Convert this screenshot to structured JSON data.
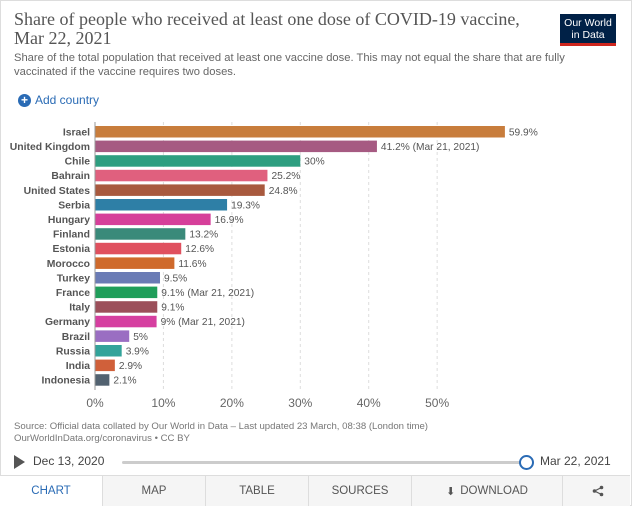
{
  "header": {
    "title": "Share of people who received at least one dose of COVID-19 vaccine, Mar 22, 2021",
    "subtitle": "Share of the total population that received at least one vaccine dose. This may not equal the share that are fully vaccinated if the vaccine requires two doses.",
    "logo_line1": "Our World",
    "logo_line2": "in Data"
  },
  "controls": {
    "add_country_label": "Add country"
  },
  "chart_data": {
    "type": "bar",
    "orientation": "horizontal",
    "title": "Share of people who received at least one dose of COVID-19 vaccine, Mar 22, 2021",
    "categories": [
      "Israel",
      "United Kingdom",
      "Chile",
      "Bahrain",
      "United States",
      "Serbia",
      "Hungary",
      "Finland",
      "Estonia",
      "Morocco",
      "Turkey",
      "France",
      "Italy",
      "Germany",
      "Brazil",
      "Russia",
      "India",
      "Indonesia"
    ],
    "values": [
      59.9,
      41.2,
      30,
      25.2,
      24.8,
      19.3,
      16.9,
      13.2,
      12.6,
      11.6,
      9.5,
      9.1,
      9.1,
      9,
      5,
      3.9,
      2.9,
      2.1
    ],
    "value_labels": [
      "59.9%",
      "41.2% (Mar 21, 2021)",
      "30%",
      "25.2%",
      "24.8%",
      "19.3%",
      "16.9%",
      "13.2%",
      "12.6%",
      "11.6%",
      "9.5%",
      "9.1% (Mar 21, 2021)",
      "9.1%",
      "9% (Mar 21, 2021)",
      "5%",
      "3.9%",
      "2.9%",
      "2.1%"
    ],
    "colors": [
      "#c87d3c",
      "#a65a82",
      "#2e9e80",
      "#e0607e",
      "#a8593e",
      "#2e7fa6",
      "#d63f9a",
      "#3a8a7a",
      "#e0505e",
      "#cf6a2c",
      "#6a7bb5",
      "#1f9e5a",
      "#9c4f5a",
      "#d63fa0",
      "#9a6ec2",
      "#33a39a",
      "#d0603a",
      "#526270"
    ],
    "xlim": [
      0,
      60
    ],
    "xticks": [
      0,
      10,
      20,
      30,
      40,
      50
    ],
    "xtick_labels": [
      "0%",
      "10%",
      "20%",
      "30%",
      "40%",
      "50%"
    ],
    "grid": true
  },
  "footer": {
    "source_line1": "Source: Official data collated by Our World in Data – Last updated 23 March, 08:38 (London time)",
    "source_line2": "OurWorldInData.org/coronavirus • CC BY"
  },
  "timeline": {
    "start": "Dec 13, 2020",
    "end": "Mar 22, 2021"
  },
  "tabs": {
    "chart": "CHART",
    "map": "MAP",
    "table": "TABLE",
    "sources": "SOURCES",
    "download": "DOWNLOAD"
  }
}
